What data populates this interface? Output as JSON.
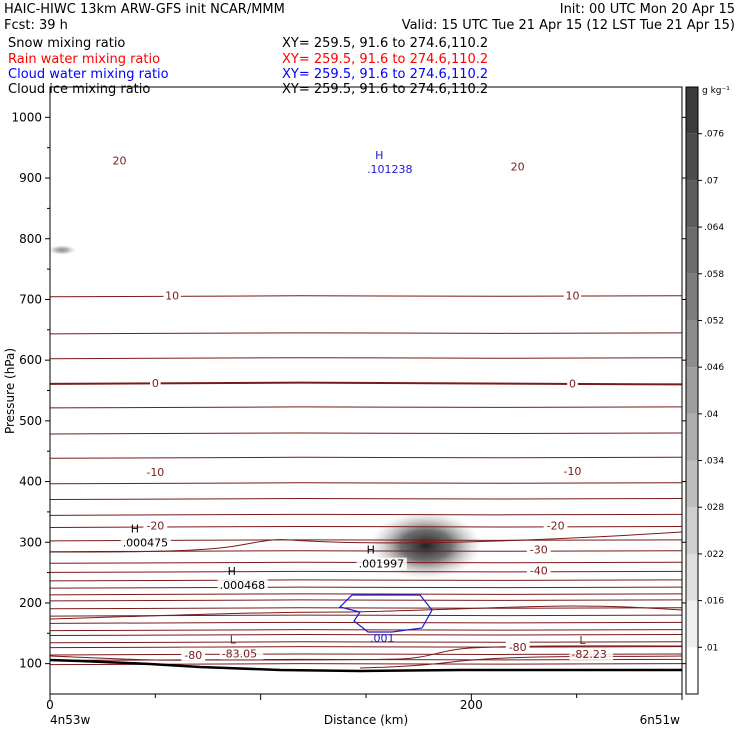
{
  "header": {
    "title_left": "HAIC-HIWC 13km ARW-GFS init   NCAR/MMM",
    "init": "Init: 00 UTC Mon 20 Apr 15",
    "fcst": "Fcst:   39 h",
    "valid": "Valid: 15 UTC Tue 21 Apr 15 (12 LST Tue 21 Apr 15)"
  },
  "fields": [
    {
      "name": "Snow mixing ratio",
      "xy": "XY= 259.5, 91.6 to 274.6,110.2",
      "color": "#000000"
    },
    {
      "name": "Rain water mixing ratio",
      "xy": "XY= 259.5, 91.6 to 274.6,110.2",
      "color": "#ff0000"
    },
    {
      "name": "Cloud water mixing ratio",
      "xy": "XY= 259.5, 91.6 to 274.6,110.2",
      "color": "#0000ff"
    },
    {
      "name": "Cloud ice mixing ratio",
      "xy": "XY= 259.5, 91.6 to 274.6,110.2",
      "color": "#000000"
    }
  ],
  "colors": {
    "contour": "#7a1a1a",
    "cloud_water": "#1a1ad6",
    "terrain": "#000000",
    "shade": "#404040"
  },
  "chart_data": {
    "type": "heatmap",
    "xlabel": "Distance (km)",
    "ylabel": "Pressure (hPa)",
    "xlim": [
      0,
      300
    ],
    "ylim": [
      1050,
      50
    ],
    "x_ticks": [
      "0",
      "200"
    ],
    "y_ticks": [
      "100",
      "200",
      "300",
      "400",
      "500",
      "600",
      "700",
      "800",
      "900",
      "1000"
    ],
    "x_endpoints": {
      "left": "4n53w",
      "right": "6n51w"
    },
    "colorbar": {
      "unit": "g kg⁻¹",
      "levels": [
        ".01",
        ".016",
        ".022",
        ".028",
        ".034",
        ".04",
        ".046",
        ".052",
        ".058",
        ".064",
        ".07",
        ".076"
      ]
    },
    "temperature_labels": [
      {
        "text": "-80",
        "x": 68,
        "p": 113
      },
      {
        "text": "-80",
        "x": 222,
        "p": 126
      },
      {
        "text": "-40",
        "x": 232,
        "p": 252
      },
      {
        "text": "-30",
        "x": 232,
        "p": 286
      },
      {
        "text": "-20",
        "x": 50,
        "p": 326
      },
      {
        "text": "-20",
        "x": 240,
        "p": 326
      },
      {
        "text": "-10",
        "x": 50,
        "p": 414
      },
      {
        "text": "-10",
        "x": 248,
        "p": 416
      },
      {
        "text": "0",
        "x": 50,
        "p": 561
      },
      {
        "text": "0",
        "x": 248,
        "p": 560
      },
      {
        "text": "10",
        "x": 58,
        "p": 705
      },
      {
        "text": "10",
        "x": 248,
        "p": 705
      },
      {
        "text": "20",
        "x": 33,
        "p": 927
      },
      {
        "text": "20",
        "x": 222,
        "p": 917
      }
    ],
    "extrema": [
      {
        "kind": "L",
        "value": "-83.05",
        "x": 91,
        "p": 120
      },
      {
        "kind": "L",
        "value": "-82.23",
        "x": 257,
        "p": 119
      },
      {
        "kind": "H",
        "value": ".000468",
        "x": 90,
        "p": 233
      },
      {
        "kind": "H",
        "value": ".001997",
        "x": 156,
        "p": 268
      },
      {
        "kind": "H",
        "value": ".000475",
        "x": 44,
        "p": 303
      },
      {
        "kind": "H",
        "value": ".101238",
        "x": 160,
        "p": 918
      }
    ],
    "cloud_water_contour_label": ".001",
    "snow_max": {
      "x": 177,
      "p": 290,
      "value": 0.075
    }
  }
}
